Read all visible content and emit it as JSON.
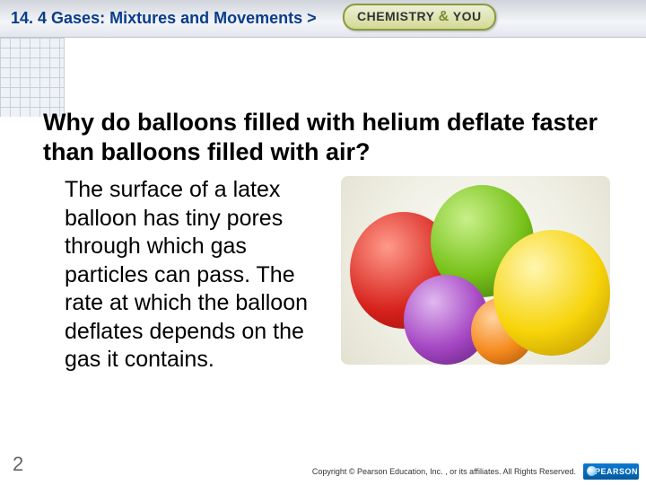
{
  "header": {
    "title": "14. 4 Gases: Mixtures and Movements >",
    "badge_left": "CHEMISTRY",
    "badge_amp": "&",
    "badge_right": "YOU"
  },
  "question": "Why do balloons filled with helium deflate faster than balloons filled with air?",
  "body": "The surface of a latex balloon has tiny pores through which gas particles can pass. The rate at which the balloon deflates depends on the gas it contains.",
  "page_number": "2",
  "copyright": "Copyright © Pearson Education, Inc. , or its affiliates. All Rights Reserved.",
  "logo_text": "PEARSON",
  "image": {
    "type": "infographic",
    "description": "cluster of latex balloons",
    "background_color": "#f0efe4",
    "balloons": [
      {
        "name": "red",
        "color": "#d6201b"
      },
      {
        "name": "green",
        "color": "#78c21a"
      },
      {
        "name": "yellow",
        "color": "#f7d40a"
      },
      {
        "name": "purple",
        "color": "#a647c4"
      },
      {
        "name": "orange",
        "color": "#f68a1e"
      }
    ]
  }
}
